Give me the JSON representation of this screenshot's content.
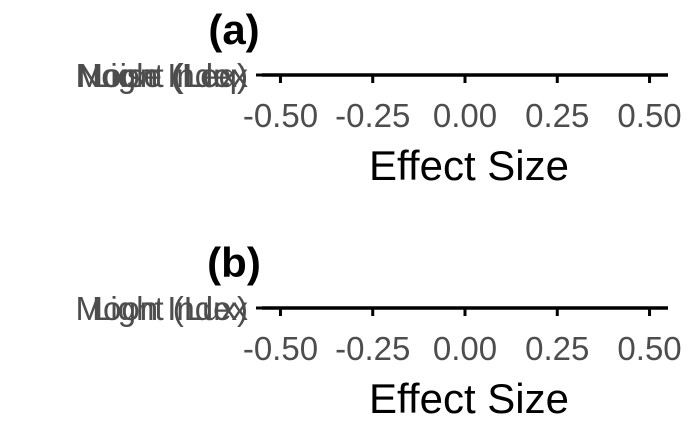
{
  "chart_data": [
    {
      "panel": "(a)",
      "type": "scatter",
      "xlabel": "Effect Size",
      "xlim": [
        -0.55,
        0.55
      ],
      "xticks": [
        -0.5,
        -0.25,
        0,
        0.25,
        0.5
      ],
      "xtick_labels": [
        "-0.50",
        "-0.25",
        "0.00",
        "0.25",
        "0.50"
      ],
      "categories": [
        "Noise (Leq)",
        "Moon Index",
        "Light (Lux)"
      ],
      "points": [],
      "grid": false
    },
    {
      "panel": "(b)",
      "type": "scatter",
      "xlabel": "Effect Size",
      "xlim": [
        -0.55,
        0.55
      ],
      "xticks": [
        -0.5,
        -0.25,
        0,
        0.25,
        0.5
      ],
      "xtick_labels": [
        "-0.50",
        "-0.25",
        "0.00",
        "0.25",
        "0.50"
      ],
      "categories": [
        "Moon Index",
        "Light (Lux)"
      ],
      "points": [],
      "grid": false
    }
  ]
}
